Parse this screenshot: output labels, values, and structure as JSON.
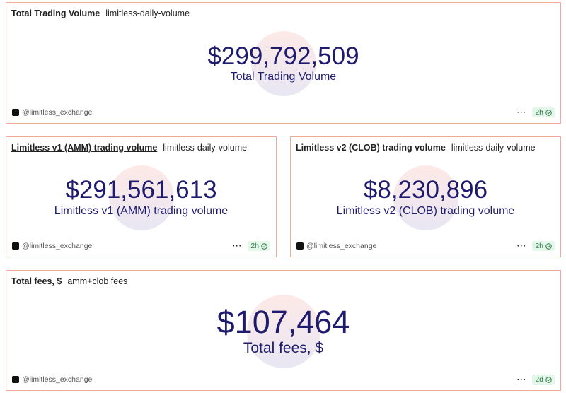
{
  "cards": [
    {
      "title": "Total Trading Volume",
      "query": "limitless-daily-volume",
      "value": "$299,792,509",
      "label": "Total Trading Volume",
      "author": "@limitless_exchange",
      "age": "2h"
    },
    {
      "title": "Limitless v1 (AMM) trading volume",
      "query": "limitless-daily-volume",
      "value": "$291,561,613",
      "label": "Limitless v1 (AMM) trading volume",
      "author": "@limitless_exchange",
      "age": "2h"
    },
    {
      "title": "Limitless v2 (CLOB) trading volume",
      "query": "limitless-daily-volume",
      "value": "$8,230,896",
      "label": "Limitless v2 (CLOB) trading volume",
      "author": "@limitless_exchange",
      "age": "2h"
    },
    {
      "title": "Total fees, $",
      "query": "amm+clob fees",
      "value": "$107,464",
      "label": "Total fees, $",
      "author": "@limitless_exchange",
      "age": "2d"
    }
  ]
}
